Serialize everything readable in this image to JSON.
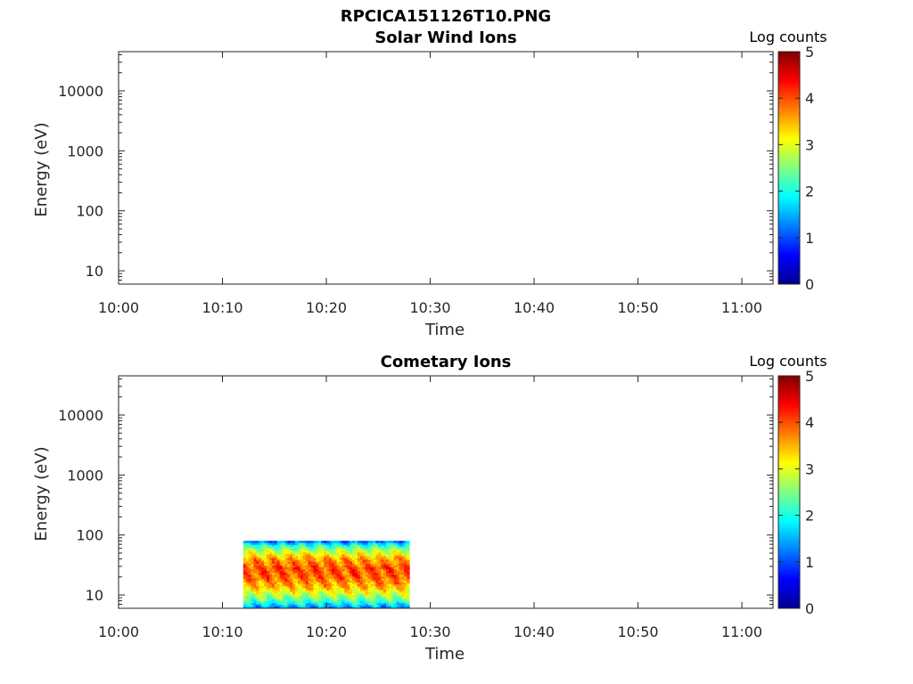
{
  "figure_title": "RPCICA151126T10.PNG",
  "chart_data": [
    {
      "type": "heatmap",
      "title": "Solar Wind Ions",
      "xlabel": "Time",
      "ylabel": "Energy (eV)",
      "x_ticks": [
        "10:00",
        "10:10",
        "10:20",
        "10:30",
        "10:40",
        "10:50",
        "11:00"
      ],
      "xlim": [
        "10:00",
        "11:03"
      ],
      "y_scale": "log",
      "y_ticks": [
        "10",
        "100",
        "1000",
        "10000"
      ],
      "ylim": [
        6,
        45000
      ],
      "colorbar": {
        "label": "Log counts",
        "ticks": [
          "0",
          "1",
          "2",
          "3",
          "4",
          "5"
        ],
        "range": [
          0,
          5
        ],
        "colormap": "jet"
      },
      "blocks": []
    },
    {
      "type": "heatmap",
      "title": "Cometary Ions",
      "xlabel": "Time",
      "ylabel": "Energy (eV)",
      "x_ticks": [
        "10:00",
        "10:10",
        "10:20",
        "10:30",
        "10:40",
        "10:50",
        "11:00"
      ],
      "xlim": [
        "10:00",
        "11:03"
      ],
      "y_scale": "log",
      "y_ticks": [
        "10",
        "100",
        "1000",
        "10000"
      ],
      "ylim": [
        6,
        45000
      ],
      "colorbar": {
        "label": "Log counts",
        "ticks": [
          "0",
          "1",
          "2",
          "3",
          "4",
          "5"
        ],
        "range": [
          0,
          5
        ],
        "colormap": "jet"
      },
      "blocks": [
        {
          "time_start": "10:12",
          "time_end": "10:28",
          "energy_min": 6,
          "energy_max": 80,
          "energy_profile": [
            {
              "energy": 6,
              "log_counts": 1.2
            },
            {
              "energy": 8,
              "log_counts": 2.2
            },
            {
              "energy": 10,
              "log_counts": 2.8
            },
            {
              "energy": 14,
              "log_counts": 3.5
            },
            {
              "energy": 20,
              "log_counts": 3.9
            },
            {
              "energy": 28,
              "log_counts": 4.0
            },
            {
              "energy": 40,
              "log_counts": 3.6
            },
            {
              "energy": 55,
              "log_counts": 2.8
            },
            {
              "energy": 70,
              "log_counts": 1.9
            },
            {
              "energy": 80,
              "log_counts": 1.0
            }
          ]
        }
      ]
    }
  ]
}
